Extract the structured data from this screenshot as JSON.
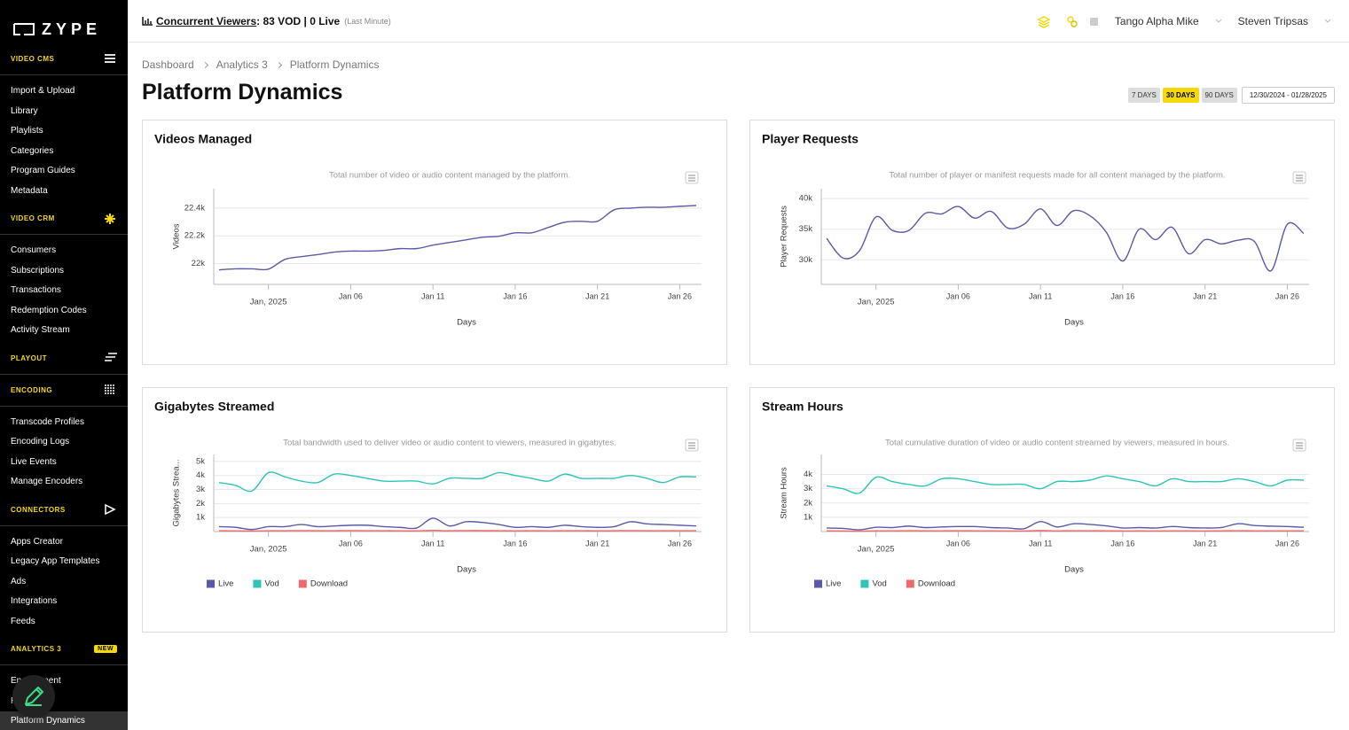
{
  "sidebar": {
    "logo": "ZYPE",
    "sections": [
      {
        "title": "VIDEO CMS",
        "items": [
          "Import & Upload",
          "Library",
          "Playlists",
          "Categories",
          "Program Guides",
          "Metadata"
        ]
      },
      {
        "title": "VIDEO CRM",
        "items": [
          "Consumers",
          "Subscriptions",
          "Transactions",
          "Redemption Codes",
          "Activity Stream"
        ]
      },
      {
        "title": "PLAYOUT",
        "items": []
      },
      {
        "title": "ENCODING",
        "items": [
          "Transcode Profiles",
          "Encoding Logs",
          "Live Events",
          "Manage Encoders"
        ]
      },
      {
        "title": "CONNECTORS",
        "items": [
          "Apps Creator",
          "Legacy App Templates",
          "Ads",
          "Integrations",
          "Feeds"
        ]
      },
      {
        "title": "ANALYTICS 3",
        "badge": "NEW",
        "items": [
          "Engagement",
          "Retention",
          "Platform Dynamics"
        ]
      }
    ]
  },
  "topbar": {
    "metric_label": "Concurrent Viewers",
    "metric_value": ": 83 VOD | 0 Live",
    "metric_note": "(Last Minute)",
    "account": "Tango Alpha Mike",
    "user": "Steven Tripsas"
  },
  "breadcrumb": [
    "Dashboard",
    "Analytics 3",
    "Platform Dynamics"
  ],
  "page_title": "Platform Dynamics",
  "range_buttons": [
    "7 DAYS",
    "30 DAYS",
    "90 DAYS"
  ],
  "active_range": 1,
  "date_range": "12/30/2024 - 01/28/2025",
  "chart_data": [
    {
      "type": "line",
      "title": "Videos Managed",
      "subtitle": "Total number of video or audio content managed by the platform.",
      "y_label": "Videos",
      "x_label": "Days",
      "grid": true,
      "legend": false,
      "x": [
        "2024-12-29",
        "2024-12-30",
        "2024-12-31",
        "2025-01-01",
        "2025-01-02",
        "2025-01-03",
        "2025-01-04",
        "2025-01-05",
        "2025-01-06",
        "2025-01-07",
        "2025-01-08",
        "2025-01-09",
        "2025-01-10",
        "2025-01-11",
        "2025-01-12",
        "2025-01-13",
        "2025-01-14",
        "2025-01-15",
        "2025-01-16",
        "2025-01-17",
        "2025-01-18",
        "2025-01-19",
        "2025-01-20",
        "2025-01-21",
        "2025-01-22",
        "2025-01-23",
        "2025-01-24",
        "2025-01-25",
        "2025-01-26",
        "2025-01-27"
      ],
      "xlim": [
        "2024-12-29",
        "2025-01-27"
      ],
      "xticks": [
        {
          "value": "2025-01-01",
          "label": "Jan, 2025"
        },
        {
          "value": "2025-01-06",
          "label": "Jan 06"
        },
        {
          "value": "2025-01-11",
          "label": "Jan 11"
        },
        {
          "value": "2025-01-16",
          "label": "Jan 16"
        },
        {
          "value": "2025-01-21",
          "label": "Jan 21"
        },
        {
          "value": "2025-01-26",
          "label": "Jan 26"
        }
      ],
      "ylim": [
        21850,
        22540
      ],
      "yticks": [
        {
          "value": 22000,
          "label": "22k"
        },
        {
          "value": 22200,
          "label": "22.2k"
        },
        {
          "value": 22400,
          "label": "22.4k"
        }
      ],
      "series": [
        {
          "name": "Videos",
          "color": "#5a5aa8",
          "values": [
            21955,
            21962,
            21962,
            21960,
            22030,
            22050,
            22065,
            22083,
            22090,
            22090,
            22095,
            22108,
            22108,
            22133,
            22152,
            22171,
            22190,
            22197,
            22222,
            22222,
            22260,
            22298,
            22305,
            22305,
            22387,
            22400,
            22406,
            22406,
            22413,
            22419
          ]
        }
      ]
    },
    {
      "type": "line",
      "title": "Player Requests",
      "subtitle": "Total number of player or manifest requests made for all content managed by the platform.",
      "y_label": "Player Requests",
      "x_label": "Days",
      "grid": true,
      "legend": false,
      "x": [
        "2024-12-29",
        "2024-12-30",
        "2024-12-31",
        "2025-01-01",
        "2025-01-02",
        "2025-01-03",
        "2025-01-04",
        "2025-01-05",
        "2025-01-06",
        "2025-01-07",
        "2025-01-08",
        "2025-01-09",
        "2025-01-10",
        "2025-01-11",
        "2025-01-12",
        "2025-01-13",
        "2025-01-14",
        "2025-01-15",
        "2025-01-16",
        "2025-01-17",
        "2025-01-18",
        "2025-01-19",
        "2025-01-20",
        "2025-01-21",
        "2025-01-22",
        "2025-01-23",
        "2025-01-24",
        "2025-01-25",
        "2025-01-26",
        "2025-01-27"
      ],
      "xlim": [
        "2024-12-29",
        "2025-01-27"
      ],
      "xticks": [
        {
          "value": "2025-01-01",
          "label": "Jan, 2025"
        },
        {
          "value": "2025-01-06",
          "label": "Jan 06"
        },
        {
          "value": "2025-01-11",
          "label": "Jan 11"
        },
        {
          "value": "2025-01-16",
          "label": "Jan 16"
        },
        {
          "value": "2025-01-21",
          "label": "Jan 21"
        },
        {
          "value": "2025-01-26",
          "label": "Jan 26"
        }
      ],
      "ylim": [
        26000,
        41600
      ],
      "yticks": [
        {
          "value": 30000,
          "label": "30k"
        },
        {
          "value": 35000,
          "label": "35k"
        },
        {
          "value": 40000,
          "label": "40k"
        }
      ],
      "series": [
        {
          "name": "Player Requests",
          "color": "#5a5aa8",
          "values": [
            33500,
            30300,
            31500,
            37000,
            34800,
            34800,
            37600,
            37500,
            38700,
            36800,
            37900,
            35200,
            35800,
            38300,
            35600,
            38000,
            37200,
            34500,
            29800,
            35000,
            33300,
            35300,
            31000,
            33300,
            32600,
            33200,
            33000,
            28200,
            35800,
            34300
          ]
        }
      ]
    },
    {
      "type": "line",
      "title": "Gigabytes Streamed",
      "subtitle": "Total bandwidth used to deliver video or audio content to viewers, measured in gigabytes.",
      "y_label": "Gigabytes Strea...",
      "x_label": "Days",
      "grid": true,
      "legend": true,
      "x": [
        "2024-12-29",
        "2024-12-30",
        "2024-12-31",
        "2025-01-01",
        "2025-01-02",
        "2025-01-03",
        "2025-01-04",
        "2025-01-05",
        "2025-01-06",
        "2025-01-07",
        "2025-01-08",
        "2025-01-09",
        "2025-01-10",
        "2025-01-11",
        "2025-01-12",
        "2025-01-13",
        "2025-01-14",
        "2025-01-15",
        "2025-01-16",
        "2025-01-17",
        "2025-01-18",
        "2025-01-19",
        "2025-01-20",
        "2025-01-21",
        "2025-01-22",
        "2025-01-23",
        "2025-01-24",
        "2025-01-25",
        "2025-01-26",
        "2025-01-27"
      ],
      "xlim": [
        "2024-12-29",
        "2025-01-27"
      ],
      "xticks": [
        {
          "value": "2025-01-01",
          "label": "Jan, 2025"
        },
        {
          "value": "2025-01-06",
          "label": "Jan 06"
        },
        {
          "value": "2025-01-11",
          "label": "Jan 11"
        },
        {
          "value": "2025-01-16",
          "label": "Jan 16"
        },
        {
          "value": "2025-01-21",
          "label": "Jan 21"
        },
        {
          "value": "2025-01-26",
          "label": "Jan 26"
        }
      ],
      "ylim": [
        0,
        5500
      ],
      "yticks": [
        {
          "value": 1000,
          "label": "1k"
        },
        {
          "value": 2000,
          "label": "2k"
        },
        {
          "value": 3000,
          "label": "3k"
        },
        {
          "value": 4000,
          "label": "4k"
        },
        {
          "value": 5000,
          "label": "5k"
        }
      ],
      "series": [
        {
          "name": "Live",
          "color": "#5a5aa8",
          "values": [
            350,
            300,
            150,
            350,
            350,
            500,
            350,
            400,
            450,
            450,
            350,
            300,
            250,
            950,
            400,
            700,
            650,
            500,
            300,
            350,
            300,
            450,
            350,
            300,
            350,
            700,
            550,
            500,
            450,
            400
          ]
        },
        {
          "name": "Vod",
          "color": "#2ec4b6",
          "values": [
            3500,
            3300,
            2900,
            4200,
            3900,
            3600,
            3500,
            4100,
            4000,
            3800,
            3600,
            3600,
            3600,
            3400,
            3800,
            3800,
            3800,
            4200,
            4000,
            3800,
            3600,
            4100,
            3800,
            3800,
            3800,
            4000,
            3800,
            3500,
            3900,
            3900
          ]
        },
        {
          "name": "Download",
          "color": "#ef6b6b",
          "values": [
            60,
            50,
            40,
            60,
            60,
            70,
            60,
            60,
            70,
            60,
            60,
            50,
            50,
            80,
            60,
            70,
            70,
            60,
            50,
            60,
            50,
            60,
            60,
            50,
            60,
            70,
            60,
            60,
            60,
            60
          ]
        }
      ]
    },
    {
      "type": "line",
      "title": "Stream Hours",
      "subtitle": "Total cumulative duration of video or audio content streamed by viewers, measured in hours.",
      "y_label": "Stream Hours",
      "x_label": "Days",
      "grid": true,
      "legend": true,
      "x": [
        "2024-12-29",
        "2024-12-30",
        "2024-12-31",
        "2025-01-01",
        "2025-01-02",
        "2025-01-03",
        "2025-01-04",
        "2025-01-05",
        "2025-01-06",
        "2025-01-07",
        "2025-01-08",
        "2025-01-09",
        "2025-01-10",
        "2025-01-11",
        "2025-01-12",
        "2025-01-13",
        "2025-01-14",
        "2025-01-15",
        "2025-01-16",
        "2025-01-17",
        "2025-01-18",
        "2025-01-19",
        "2025-01-20",
        "2025-01-21",
        "2025-01-22",
        "2025-01-23",
        "2025-01-24",
        "2025-01-25",
        "2025-01-26",
        "2025-01-27"
      ],
      "xlim": [
        "2024-12-29",
        "2025-01-27"
      ],
      "xticks": [
        {
          "value": "2025-01-01",
          "label": "Jan, 2025"
        },
        {
          "value": "2025-01-06",
          "label": "Jan 06"
        },
        {
          "value": "2025-01-11",
          "label": "Jan 11"
        },
        {
          "value": "2025-01-16",
          "label": "Jan 16"
        },
        {
          "value": "2025-01-21",
          "label": "Jan 21"
        },
        {
          "value": "2025-01-26",
          "label": "Jan 26"
        }
      ],
      "ylim": [
        0,
        5400
      ],
      "yticks": [
        {
          "value": 1000,
          "label": "1k"
        },
        {
          "value": 2000,
          "label": "2k"
        },
        {
          "value": 3000,
          "label": "3k"
        },
        {
          "value": 4000,
          "label": "4k"
        }
      ],
      "series": [
        {
          "name": "Live",
          "color": "#5a5aa8",
          "values": [
            250,
            220,
            120,
            300,
            280,
            380,
            280,
            320,
            350,
            350,
            280,
            250,
            200,
            700,
            320,
            550,
            500,
            400,
            250,
            280,
            250,
            350,
            280,
            250,
            280,
            550,
            420,
            380,
            350,
            300
          ]
        },
        {
          "name": "Vod",
          "color": "#2ec4b6",
          "values": [
            3200,
            3000,
            2700,
            3800,
            3500,
            3300,
            3200,
            3700,
            3700,
            3500,
            3300,
            3300,
            3300,
            3000,
            3500,
            3500,
            3600,
            3900,
            3700,
            3500,
            3200,
            3700,
            3500,
            3500,
            3500,
            3700,
            3500,
            3200,
            3600,
            3600
          ]
        },
        {
          "name": "Download",
          "color": "#ef6b6b",
          "values": [
            50,
            40,
            30,
            50,
            50,
            60,
            50,
            50,
            60,
            50,
            50,
            40,
            40,
            70,
            50,
            60,
            60,
            50,
            40,
            50,
            40,
            50,
            50,
            40,
            50,
            60,
            50,
            50,
            50,
            50
          ]
        }
      ]
    }
  ]
}
